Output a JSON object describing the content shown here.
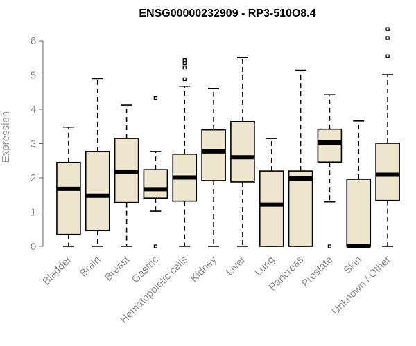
{
  "chart_data": {
    "type": "boxplot",
    "title": "ENSG00000232909 - RP3-510O8.4",
    "xlabel": "",
    "ylabel": "Expression",
    "ylim": [
      0,
      6.3
    ],
    "yticks": [
      0,
      1,
      2,
      3,
      4,
      5,
      6
    ],
    "colors": {
      "box_fill": "#ede6cc",
      "stroke": "#000000",
      "axis": "#666666"
    },
    "categories": [
      "Bladder",
      "Brain",
      "Breast",
      "Gastric",
      "Hematopoietic cells",
      "Kidney",
      "Liver",
      "Lung",
      "Pancreas",
      "Prostate",
      "Skin",
      "Unknown / Other"
    ],
    "series": [
      {
        "name": "Bladder",
        "whisker_low": 0,
        "q1": 0.35,
        "median": 1.68,
        "q3": 2.45,
        "whisker_high": 3.48,
        "outliers": []
      },
      {
        "name": "Brain",
        "whisker_low": 0,
        "q1": 0.46,
        "median": 1.48,
        "q3": 2.77,
        "whisker_high": 4.9,
        "outliers": []
      },
      {
        "name": "Breast",
        "whisker_low": 0,
        "q1": 1.28,
        "median": 2.17,
        "q3": 3.15,
        "whisker_high": 4.12,
        "outliers": []
      },
      {
        "name": "Gastric",
        "whisker_low": 1.03,
        "q1": 1.41,
        "median": 1.67,
        "q3": 2.24,
        "whisker_high": 2.77,
        "outliers": [
          0,
          4.33
        ]
      },
      {
        "name": "Hematopoietic cells",
        "whisker_low": 0,
        "q1": 1.32,
        "median": 2.01,
        "q3": 2.69,
        "whisker_high": 4.67,
        "outliers": [
          4.88,
          5.22,
          5.34,
          5.44
        ]
      },
      {
        "name": "Kidney",
        "whisker_low": 0,
        "q1": 1.92,
        "median": 2.77,
        "q3": 3.4,
        "whisker_high": 4.61,
        "outliers": []
      },
      {
        "name": "Liver",
        "whisker_low": 0,
        "q1": 1.88,
        "median": 2.6,
        "q3": 3.64,
        "whisker_high": 5.51,
        "outliers": []
      },
      {
        "name": "Lung",
        "whisker_low": 0,
        "q1": 0,
        "median": 1.22,
        "q3": 2.2,
        "whisker_high": 3.15,
        "outliers": []
      },
      {
        "name": "Pancreas",
        "whisker_low": 0,
        "q1": 0,
        "median": 1.98,
        "q3": 2.2,
        "whisker_high": 5.14,
        "outliers": []
      },
      {
        "name": "Prostate",
        "whisker_low": 1.3,
        "q1": 2.46,
        "median": 3.03,
        "q3": 3.42,
        "whisker_high": 4.42,
        "outliers": [
          0
        ]
      },
      {
        "name": "Skin",
        "whisker_low": 0,
        "q1": 0,
        "median": 0.02,
        "q3": 1.96,
        "whisker_high": 3.66,
        "outliers": []
      },
      {
        "name": "Unknown / Other",
        "whisker_low": 0,
        "q1": 1.34,
        "median": 2.09,
        "q3": 3.01,
        "whisker_high": 5.01,
        "outliers": [
          5.55,
          6.08,
          6.34
        ]
      }
    ]
  }
}
